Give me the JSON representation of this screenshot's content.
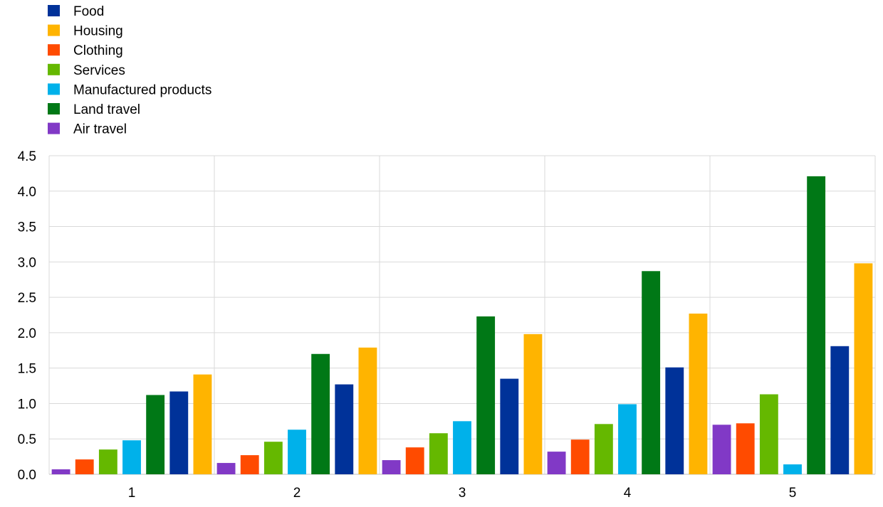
{
  "chart_data": {
    "type": "bar",
    "title": "",
    "xlabel": "",
    "ylabel": "",
    "categories": [
      "1",
      "2",
      "3",
      "4",
      "5"
    ],
    "ylim": [
      0,
      4.5
    ],
    "yticks": [
      "0.0",
      "0.5",
      "1.0",
      "1.5",
      "2.0",
      "2.5",
      "3.0",
      "3.5",
      "4.0",
      "4.5"
    ],
    "grid": true,
    "legend_position": "top-left",
    "legend": [
      {
        "name": "Food",
        "color": "#003299"
      },
      {
        "name": "Housing",
        "color": "#FFB400"
      },
      {
        "name": "Clothing",
        "color": "#FF4B00"
      },
      {
        "name": "Services",
        "color": "#65B800"
      },
      {
        "name": "Manufactured products",
        "color": "#00B1EA"
      },
      {
        "name": "Land travel",
        "color": "#007816"
      },
      {
        "name": "Air travel",
        "color": "#8139C6"
      }
    ],
    "bar_order": [
      "Air travel",
      "Clothing",
      "Services",
      "Manufactured products",
      "Land travel",
      "Food",
      "Housing"
    ],
    "series": [
      {
        "name": "Air travel",
        "color": "#8139C6",
        "values": [
          0.07,
          0.16,
          0.2,
          0.32,
          0.7
        ]
      },
      {
        "name": "Clothing",
        "color": "#FF4B00",
        "values": [
          0.21,
          0.27,
          0.38,
          0.49,
          0.72
        ]
      },
      {
        "name": "Services",
        "color": "#65B800",
        "values": [
          0.35,
          0.46,
          0.58,
          0.71,
          1.13
        ]
      },
      {
        "name": "Manufactured products",
        "color": "#00B1EA",
        "values": [
          0.48,
          0.63,
          0.75,
          0.99,
          0.14
        ]
      },
      {
        "name": "Land travel",
        "color": "#007816",
        "values": [
          1.12,
          1.7,
          2.23,
          2.87,
          4.21
        ]
      },
      {
        "name": "Food",
        "color": "#003299",
        "values": [
          1.17,
          1.27,
          1.35,
          1.51,
          1.81
        ]
      },
      {
        "name": "Housing",
        "color": "#FFB400",
        "values": [
          1.41,
          1.79,
          1.98,
          2.27,
          2.98
        ]
      }
    ]
  }
}
